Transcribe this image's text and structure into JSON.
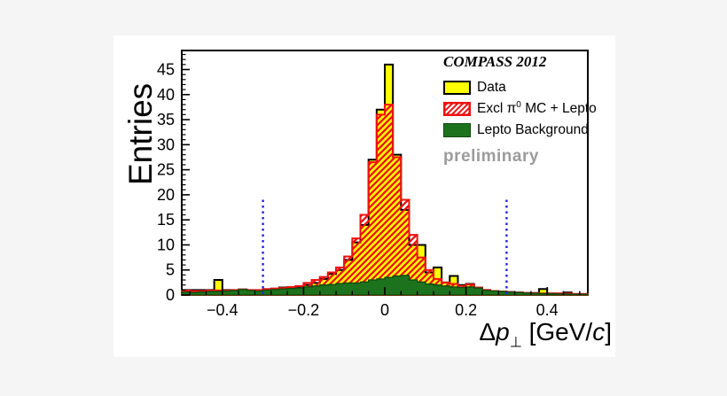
{
  "figure": {
    "background": "#f5f5f5",
    "canvas_background": "#ffffff"
  },
  "colors": {
    "data_fill": "#ffff00",
    "data_line": "#000000",
    "mc_hatch": "#ee1111",
    "mc_line": "#ee1111",
    "lepto_fill": "#1d731d",
    "lepto_line": "#0d4b0d",
    "cut_line": "#2222ee",
    "frame": "#000000",
    "watermark": "#9c9c9c"
  },
  "y_axis": {
    "title": "Entries",
    "tick_labels": [
      {
        "v": 0,
        "t": "0"
      },
      {
        "v": 5,
        "t": "5"
      },
      {
        "v": 10,
        "t": "10"
      },
      {
        "v": 15,
        "t": "15"
      },
      {
        "v": 20,
        "t": "20"
      },
      {
        "v": 25,
        "t": "25"
      },
      {
        "v": 30,
        "t": "30"
      },
      {
        "v": 35,
        "t": "35"
      },
      {
        "v": 40,
        "t": "40"
      },
      {
        "v": 45,
        "t": "45"
      }
    ]
  },
  "x_axis": {
    "title": {
      "delta": "Δ",
      "p": "p",
      "sub": "⊥",
      "bracket_pre": " [GeV/",
      "c": "c",
      "bracket_post": "]"
    },
    "tick_labels": [
      {
        "v": -0.4,
        "t": "−0.4"
      },
      {
        "v": -0.2,
        "t": "−0.2"
      },
      {
        "v": 0,
        "t": "0"
      },
      {
        "v": 0.2,
        "t": "0.2"
      },
      {
        "v": 0.4,
        "t": "0.4"
      }
    ]
  },
  "legend": {
    "header": "COMPASS 2012",
    "items": [
      {
        "id": "data",
        "label": "Data"
      },
      {
        "id": "mc",
        "label_pre": "Excl π",
        "label_sup": "0",
        "label_post": " MC + Lepto"
      },
      {
        "id": "lepto",
        "label": "Lepto Background"
      }
    ],
    "watermark": "preliminary"
  },
  "chart_data": {
    "type": "histogram-overlay",
    "title": "",
    "xlabel": "Δp⊥ [GeV/c]",
    "ylabel": "Entries",
    "xlim": [
      -0.5,
      0.5
    ],
    "ylim": [
      0,
      48.8
    ],
    "grid": false,
    "legend_position": "top-right",
    "annotations": [
      "COMPASS 2012",
      "preliminary"
    ],
    "bin_width": 0.02,
    "x_start": -0.5,
    "n_bins": 50,
    "cut_lines": {
      "x": [
        -0.3,
        0.3
      ],
      "y_top": 19,
      "style": "dashed-blue-vertical"
    },
    "series": [
      {
        "name": "Data",
        "style": "yellow-fill-black-outline",
        "values": [
          1,
          1,
          1,
          1,
          3,
          1,
          0.8,
          1.1,
          0.9,
          0.8,
          1,
          1.2,
          1.5,
          1.6,
          1.5,
          2,
          2.4,
          3.2,
          4.2,
          5,
          7,
          10.5,
          14,
          27,
          37,
          46,
          28,
          17,
          10,
          10,
          4.5,
          5.5,
          2.5,
          3.8,
          2,
          2.2,
          1.5,
          1,
          0.8,
          0.7,
          0.6,
          0.5,
          0.4,
          0.4,
          1.2,
          0.3,
          0.3,
          0.5,
          0.2,
          0.2
        ]
      },
      {
        "name": "Excl π0 MC + Lepto",
        "style": "red-hatch-red-outline",
        "values": [
          0.9,
          0.8,
          0.8,
          0.9,
          0.9,
          0.9,
          1,
          1.1,
          1,
          1,
          1.2,
          1.3,
          1.4,
          1.6,
          1.8,
          2.4,
          3,
          3.6,
          4.5,
          5.5,
          7.7,
          11.3,
          16,
          26.5,
          36,
          38,
          27.5,
          19,
          12,
          7.5,
          5,
          3.2,
          2.5,
          2.2,
          1.8,
          2.1,
          1.5,
          1,
          0.8,
          0.7,
          0.6,
          0.5,
          0.4,
          0.4,
          0.3,
          0.3,
          0.3,
          0.3,
          0.2,
          0.2
        ]
      },
      {
        "name": "Lepto Background",
        "style": "dark-green-fill",
        "values": [
          0.6,
          0.5,
          0.6,
          0.7,
          0.7,
          0.8,
          0.9,
          1.1,
          0.9,
          0.8,
          1,
          1.1,
          1.2,
          1.3,
          1.4,
          1.6,
          1.8,
          2,
          2.1,
          2.3,
          2.4,
          2.4,
          2.6,
          3,
          3.2,
          3.5,
          3.8,
          3.9,
          3,
          2.6,
          2.2,
          2,
          1.8,
          1.6,
          1.5,
          1.6,
          1.4,
          0.9,
          0.8,
          0.7,
          0.6,
          0.5,
          0.4,
          0.35,
          0.3,
          0.25,
          0.2,
          0.2,
          0.15,
          0.15
        ]
      }
    ]
  }
}
